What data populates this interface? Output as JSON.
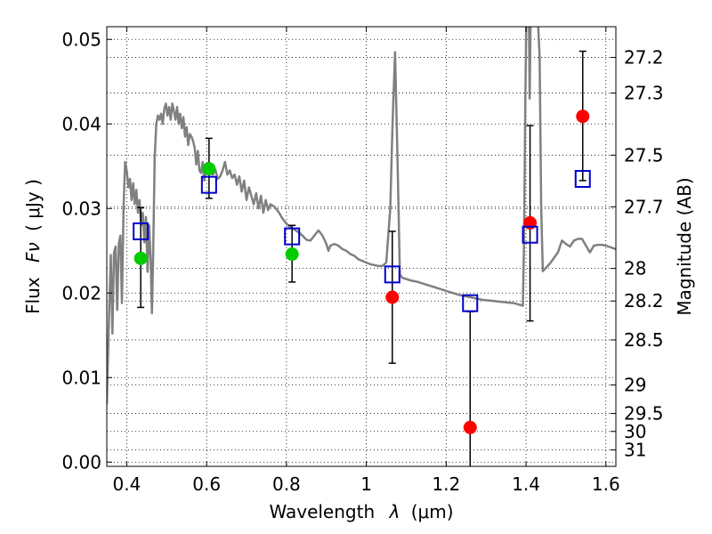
{
  "chart_data": {
    "type": "scatter",
    "xlabel_prefix": "Wavelength",
    "xlabel_symbol": "λ",
    "xlabel_unit": "(μm)",
    "ylabel_prefix": "Flux",
    "ylabel_symbol": "Fν",
    "ylabel_unit": "( μJy )",
    "y2label": "Magnitude (AB)",
    "xlim": [
      0.35,
      1.625
    ],
    "ylim": [
      -0.0005,
      0.0515
    ],
    "grid": true,
    "x_ticks": [
      {
        "value": 0.4,
        "label": "0.4"
      },
      {
        "value": 0.6,
        "label": "0.6"
      },
      {
        "value": 0.8,
        "label": "0.8"
      },
      {
        "value": 1.0,
        "label": "1"
      },
      {
        "value": 1.2,
        "label": "1.2"
      },
      {
        "value": 1.4,
        "label": "1.4"
      },
      {
        "value": 1.6,
        "label": "1.6"
      }
    ],
    "y_ticks": [
      {
        "value": 0.0,
        "label": "0.00"
      },
      {
        "value": 0.01,
        "label": "0.01"
      },
      {
        "value": 0.02,
        "label": "0.02"
      },
      {
        "value": 0.03,
        "label": "0.03"
      },
      {
        "value": 0.04,
        "label": "0.04"
      },
      {
        "value": 0.05,
        "label": "0.05"
      }
    ],
    "mag_ticks": [
      {
        "value": 27.2,
        "label": "27.2"
      },
      {
        "value": 27.3,
        "label": "27.3"
      },
      {
        "value": 27.5,
        "label": "27.5"
      },
      {
        "value": 27.7,
        "label": "27.7"
      },
      {
        "value": 28.0,
        "label": "28"
      },
      {
        "value": 28.2,
        "label": "28.2"
      },
      {
        "value": 28.5,
        "label": "28.5"
      },
      {
        "value": 29.0,
        "label": "29"
      },
      {
        "value": 29.5,
        "label": "29.5"
      },
      {
        "value": 30.0,
        "label": "30"
      },
      {
        "value": 31.0,
        "label": "31"
      }
    ],
    "model_spectrum": {
      "color": "#808080",
      "points": [
        [
          0.35,
          0.0068
        ],
        [
          0.356,
          0.018
        ],
        [
          0.36,
          0.0245
        ],
        [
          0.364,
          0.0152
        ],
        [
          0.368,
          0.0248
        ],
        [
          0.372,
          0.0255
        ],
        [
          0.376,
          0.018
        ],
        [
          0.38,
          0.0258
        ],
        [
          0.384,
          0.0268
        ],
        [
          0.388,
          0.0188
        ],
        [
          0.392,
          0.03
        ],
        [
          0.396,
          0.0355
        ],
        [
          0.4,
          0.0345
        ],
        [
          0.404,
          0.0325
        ],
        [
          0.408,
          0.0335
        ],
        [
          0.412,
          0.031
        ],
        [
          0.416,
          0.033
        ],
        [
          0.42,
          0.0305
        ],
        [
          0.424,
          0.0322
        ],
        [
          0.428,
          0.0295
        ],
        [
          0.432,
          0.031
        ],
        [
          0.436,
          0.028
        ],
        [
          0.44,
          0.0295
        ],
        [
          0.444,
          0.026
        ],
        [
          0.448,
          0.029
        ],
        [
          0.452,
          0.0225
        ],
        [
          0.456,
          0.028
        ],
        [
          0.46,
          0.024
        ],
        [
          0.463,
          0.0176
        ],
        [
          0.466,
          0.024
        ],
        [
          0.47,
          0.036
        ],
        [
          0.474,
          0.04
        ],
        [
          0.478,
          0.041
        ],
        [
          0.482,
          0.0405
        ],
        [
          0.486,
          0.0412
        ],
        [
          0.49,
          0.04
        ],
        [
          0.494,
          0.0418
        ],
        [
          0.498,
          0.0424
        ],
        [
          0.502,
          0.041
        ],
        [
          0.506,
          0.042
        ],
        [
          0.51,
          0.0405
        ],
        [
          0.514,
          0.0424
        ],
        [
          0.518,
          0.0415
        ],
        [
          0.522,
          0.0405
        ],
        [
          0.526,
          0.042
        ],
        [
          0.53,
          0.04
        ],
        [
          0.534,
          0.0412
        ],
        [
          0.538,
          0.0395
        ],
        [
          0.542,
          0.0408
        ],
        [
          0.546,
          0.0385
        ],
        [
          0.55,
          0.0396
        ],
        [
          0.554,
          0.0375
        ],
        [
          0.558,
          0.0388
        ],
        [
          0.562,
          0.0385
        ],
        [
          0.566,
          0.038
        ],
        [
          0.57,
          0.0372
        ],
        [
          0.574,
          0.0352
        ],
        [
          0.578,
          0.0368
        ],
        [
          0.582,
          0.0345
        ],
        [
          0.586,
          0.0342
        ],
        [
          0.59,
          0.0355
        ],
        [
          0.594,
          0.0333
        ],
        [
          0.598,
          0.0345
        ],
        [
          0.604,
          0.0345
        ],
        [
          0.61,
          0.035
        ],
        [
          0.616,
          0.034
        ],
        [
          0.622,
          0.0346
        ],
        [
          0.628,
          0.0335
        ],
        [
          0.634,
          0.0338
        ],
        [
          0.64,
          0.0345
        ],
        [
          0.646,
          0.0355
        ],
        [
          0.652,
          0.034
        ],
        [
          0.658,
          0.0345
        ],
        [
          0.664,
          0.0336
        ],
        [
          0.67,
          0.034
        ],
        [
          0.676,
          0.0328
        ],
        [
          0.682,
          0.0338
        ],
        [
          0.688,
          0.032
        ],
        [
          0.694,
          0.0333
        ],
        [
          0.7,
          0.031
        ],
        [
          0.706,
          0.0325
        ],
        [
          0.712,
          0.0315
        ],
        [
          0.718,
          0.0305
        ],
        [
          0.724,
          0.0318
        ],
        [
          0.73,
          0.03
        ],
        [
          0.736,
          0.0315
        ],
        [
          0.742,
          0.0295
        ],
        [
          0.748,
          0.031
        ],
        [
          0.754,
          0.0298
        ],
        [
          0.76,
          0.0305
        ],
        [
          0.77,
          0.0302
        ],
        [
          0.78,
          0.0296
        ],
        [
          0.79,
          0.0288
        ],
        [
          0.8,
          0.0282
        ],
        [
          0.81,
          0.0278
        ],
        [
          0.82,
          0.0275
        ],
        [
          0.83,
          0.0272
        ],
        [
          0.84,
          0.0268
        ],
        [
          0.85,
          0.0263
        ],
        [
          0.86,
          0.0262
        ],
        [
          0.87,
          0.0268
        ],
        [
          0.88,
          0.0274
        ],
        [
          0.89,
          0.0268
        ],
        [
          0.9,
          0.0258
        ],
        [
          0.905,
          0.025
        ],
        [
          0.91,
          0.0256
        ],
        [
          0.92,
          0.0258
        ],
        [
          0.93,
          0.0256
        ],
        [
          0.94,
          0.0252
        ],
        [
          0.95,
          0.025
        ],
        [
          0.96,
          0.0246
        ],
        [
          0.97,
          0.0244
        ],
        [
          0.98,
          0.024
        ],
        [
          0.99,
          0.0238
        ],
        [
          1.0,
          0.0236
        ],
        [
          1.01,
          0.0234
        ],
        [
          1.02,
          0.0233
        ],
        [
          1.03,
          0.0232
        ],
        [
          1.04,
          0.0232
        ],
        [
          1.05,
          0.0236
        ],
        [
          1.06,
          0.03
        ],
        [
          1.066,
          0.0405
        ],
        [
          1.072,
          0.0485
        ],
        [
          1.078,
          0.036
        ],
        [
          1.084,
          0.0222
        ],
        [
          1.09,
          0.0218
        ],
        [
          1.11,
          0.0215
        ],
        [
          1.13,
          0.0213
        ],
        [
          1.15,
          0.021
        ],
        [
          1.17,
          0.0207
        ],
        [
          1.19,
          0.0204
        ],
        [
          1.21,
          0.0201
        ],
        [
          1.23,
          0.0198
        ],
        [
          1.25,
          0.0196
        ],
        [
          1.27,
          0.0194
        ],
        [
          1.29,
          0.0192
        ],
        [
          1.31,
          0.0191
        ],
        [
          1.33,
          0.019
        ],
        [
          1.35,
          0.0189
        ],
        [
          1.37,
          0.0188
        ],
        [
          1.385,
          0.0186
        ],
        [
          1.392,
          0.0185
        ],
        [
          1.395,
          0.026
        ],
        [
          1.398,
          0.042
        ],
        [
          1.401,
          0.054
        ],
        [
          1.404,
          0.054
        ],
        [
          1.407,
          0.054
        ],
        [
          1.409,
          0.043
        ],
        [
          1.412,
          0.054
        ],
        [
          1.42,
          0.054
        ],
        [
          1.428,
          0.054
        ],
        [
          1.434,
          0.048
        ],
        [
          1.438,
          0.03
        ],
        [
          1.442,
          0.0226
        ],
        [
          1.46,
          0.0235
        ],
        [
          1.48,
          0.0248
        ],
        [
          1.49,
          0.0262
        ],
        [
          1.5,
          0.0258
        ],
        [
          1.51,
          0.0255
        ],
        [
          1.52,
          0.0262
        ],
        [
          1.53,
          0.0264
        ],
        [
          1.54,
          0.0264
        ],
        [
          1.55,
          0.0256
        ],
        [
          1.56,
          0.0248
        ],
        [
          1.57,
          0.0256
        ],
        [
          1.58,
          0.0257
        ],
        [
          1.59,
          0.0257
        ],
        [
          1.6,
          0.0256
        ],
        [
          1.625,
          0.0252
        ]
      ]
    },
    "model_photometry": {
      "marker": "open-square",
      "color": "#0000cc",
      "points": [
        {
          "x": 0.435,
          "y": 0.0273
        },
        {
          "x": 0.606,
          "y": 0.0328
        },
        {
          "x": 0.814,
          "y": 0.0267
        },
        {
          "x": 1.065,
          "y": 0.0222
        },
        {
          "x": 1.26,
          "y": 0.0188
        },
        {
          "x": 1.41,
          "y": 0.0269
        },
        {
          "x": 1.542,
          "y": 0.0335
        }
      ]
    },
    "observed_detections": {
      "marker": "filled-circle",
      "color": "#00cc00",
      "points": [
        {
          "x": 0.435,
          "y": 0.0241,
          "err_low": 0.0183,
          "err_high": 0.0301
        },
        {
          "x": 0.606,
          "y": 0.0347,
          "err_low": 0.0312,
          "err_high": 0.0383
        },
        {
          "x": 0.814,
          "y": 0.0246,
          "err_low": 0.0213,
          "err_high": 0.028
        }
      ]
    },
    "observed_ir": {
      "marker": "filled-circle",
      "color": "#ff0000",
      "points": [
        {
          "x": 1.065,
          "y": 0.0195,
          "err_low": 0.0117,
          "err_high": 0.0273
        },
        {
          "x": 1.26,
          "y": 0.0041,
          "err_low": -0.001,
          "err_high": 0.0178
        },
        {
          "x": 1.41,
          "y": 0.0283,
          "err_low": 0.0167,
          "err_high": 0.0398
        },
        {
          "x": 1.542,
          "y": 0.0409,
          "err_low": 0.0333,
          "err_high": 0.0486
        }
      ]
    }
  }
}
